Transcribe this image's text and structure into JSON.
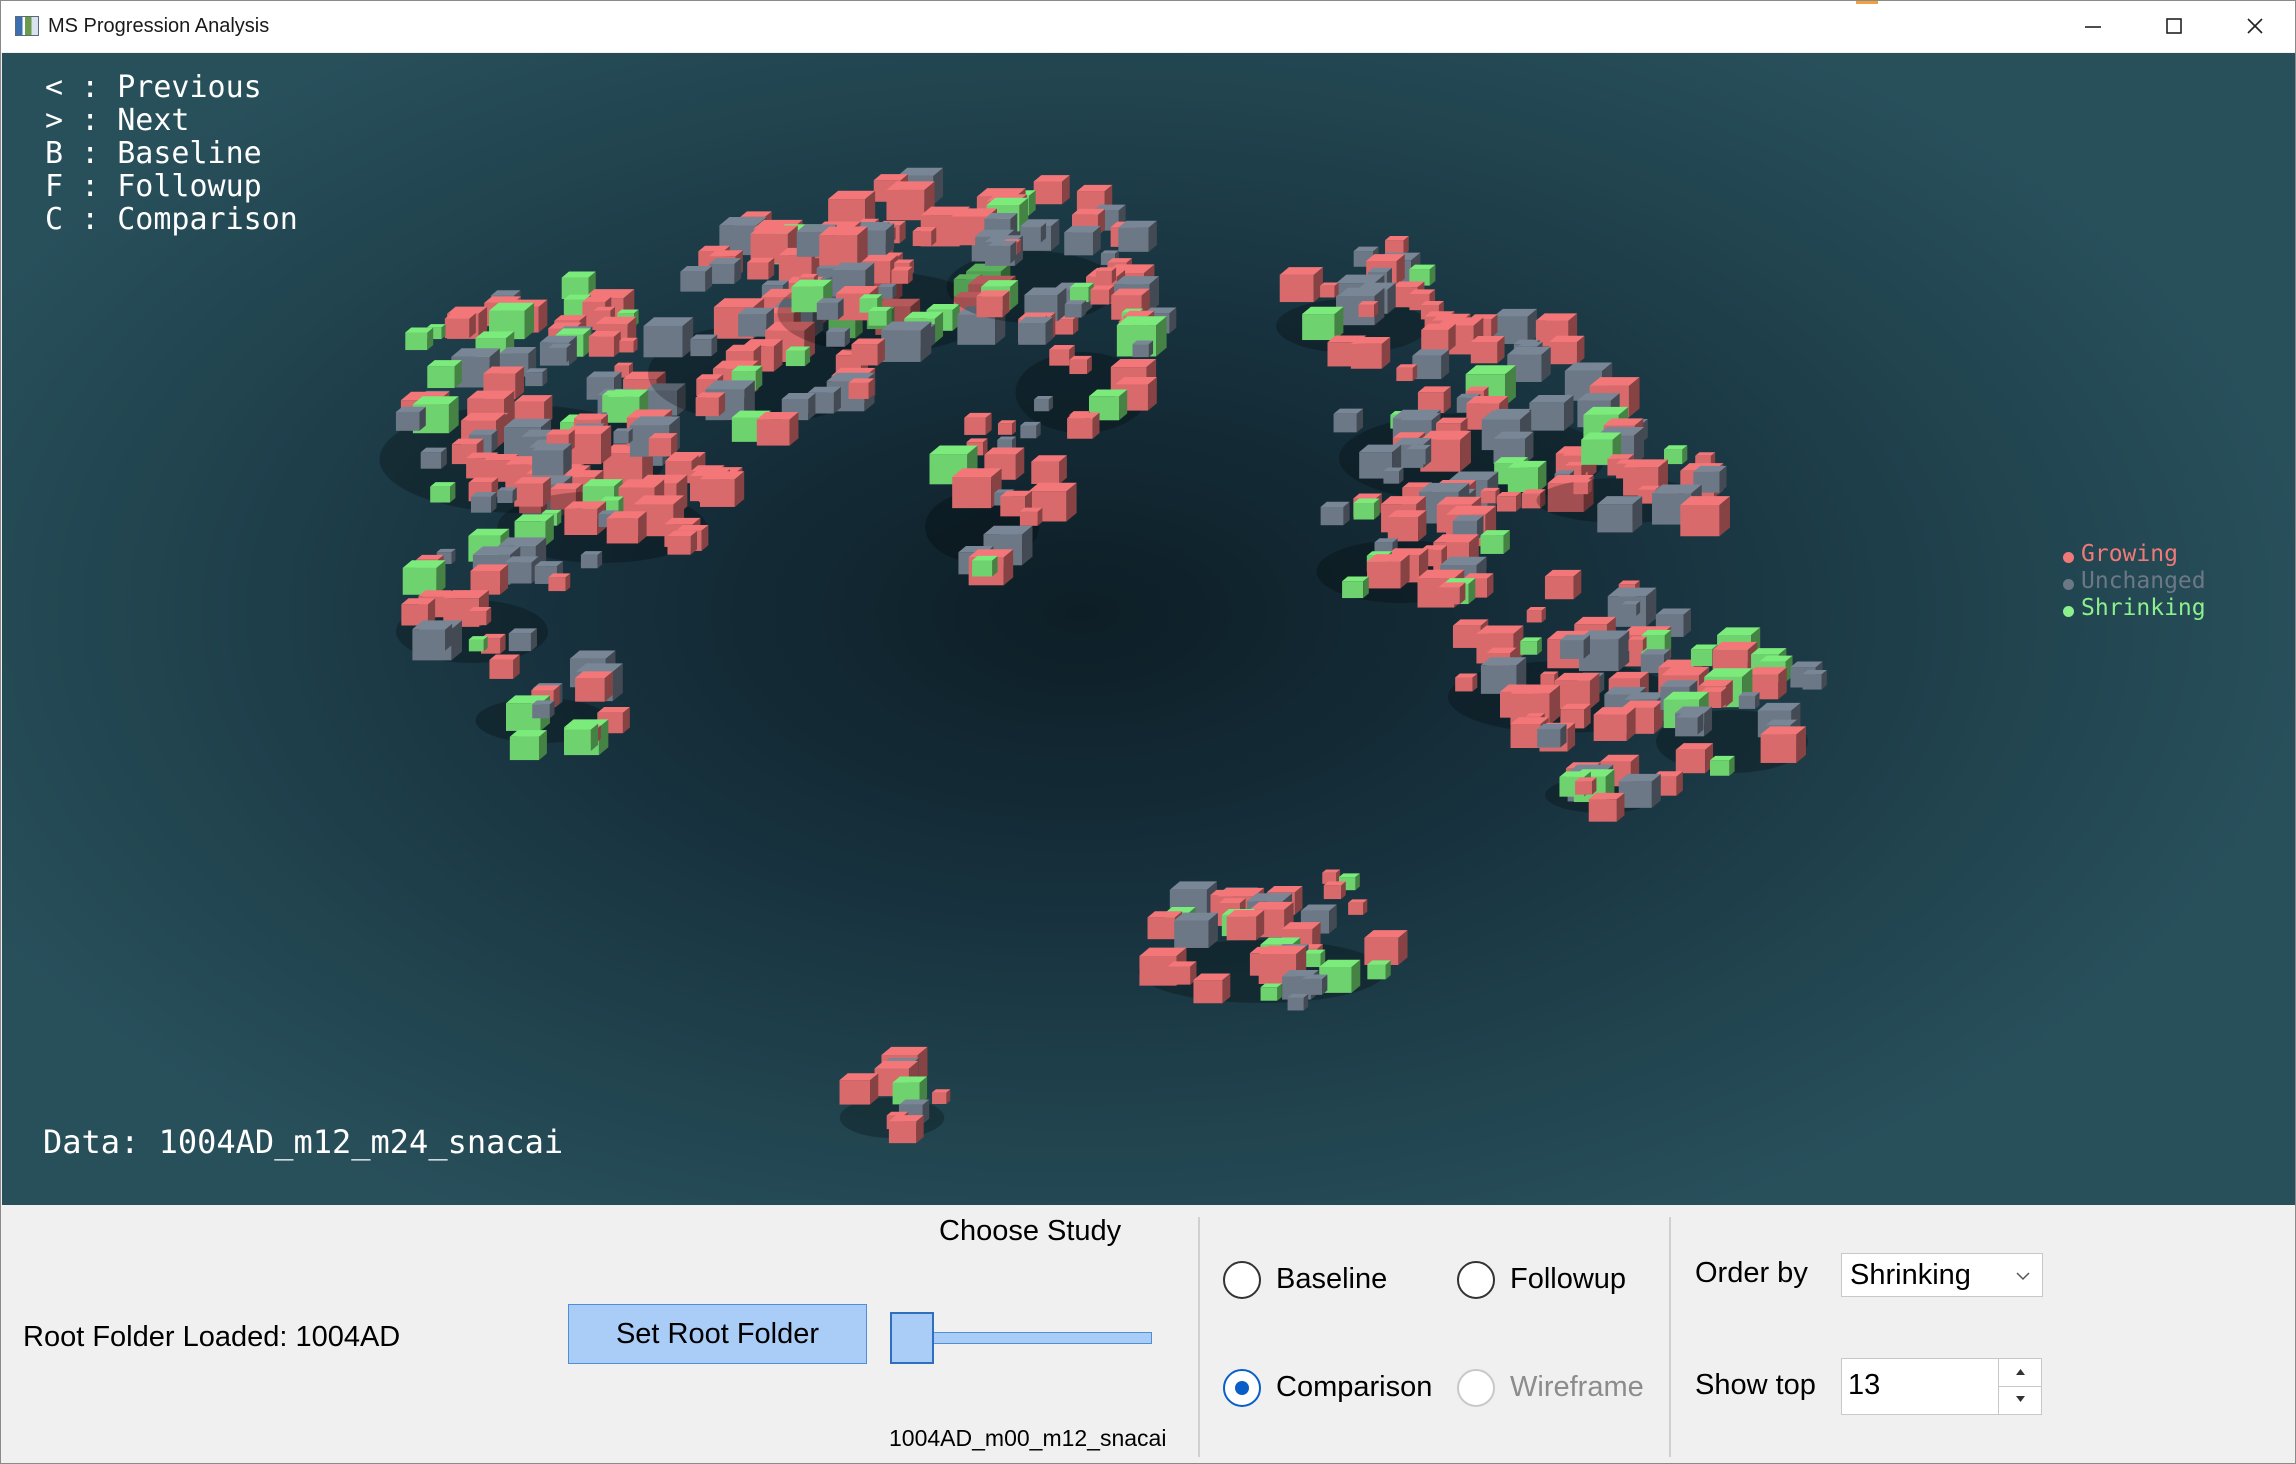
{
  "window": {
    "title": "MS Progression Analysis",
    "minimize_icon": "minimize-icon",
    "maximize_icon": "maximize-icon",
    "close_icon": "close-icon"
  },
  "viewport": {
    "shortcuts": [
      "< : Previous",
      "> : Next",
      "B : Baseline",
      "F : Followup",
      "C : Comparison"
    ],
    "data_label": "Data: 1004AD_m12_m24_snacai",
    "legend": [
      {
        "label": "Growing",
        "color": "#f07a78"
      },
      {
        "label": "Unchanged",
        "color": "#6c7886"
      },
      {
        "label": "Shrinking",
        "color": "#8cf08c"
      }
    ]
  },
  "controls": {
    "root_folder_label": "Root Folder Loaded: 1004AD",
    "set_root_button": "Set Root Folder",
    "choose_study_label": "Choose Study",
    "study_slider_value": 0,
    "study_name": "1004AD_m00_m12_snacai",
    "view_modes": {
      "baseline": "Baseline",
      "followup": "Followup",
      "comparison": "Comparison",
      "wireframe": "Wireframe",
      "selected": "Comparison"
    },
    "order_by_label": "Order by",
    "order_by_value": "Shrinking",
    "show_top_label": "Show top",
    "show_top_value": "13"
  },
  "colors": {
    "growing": "#d96a6c",
    "unchanged": "#6c7886",
    "shrinking": "#6ed36e",
    "accent": "#0a5fc7"
  }
}
